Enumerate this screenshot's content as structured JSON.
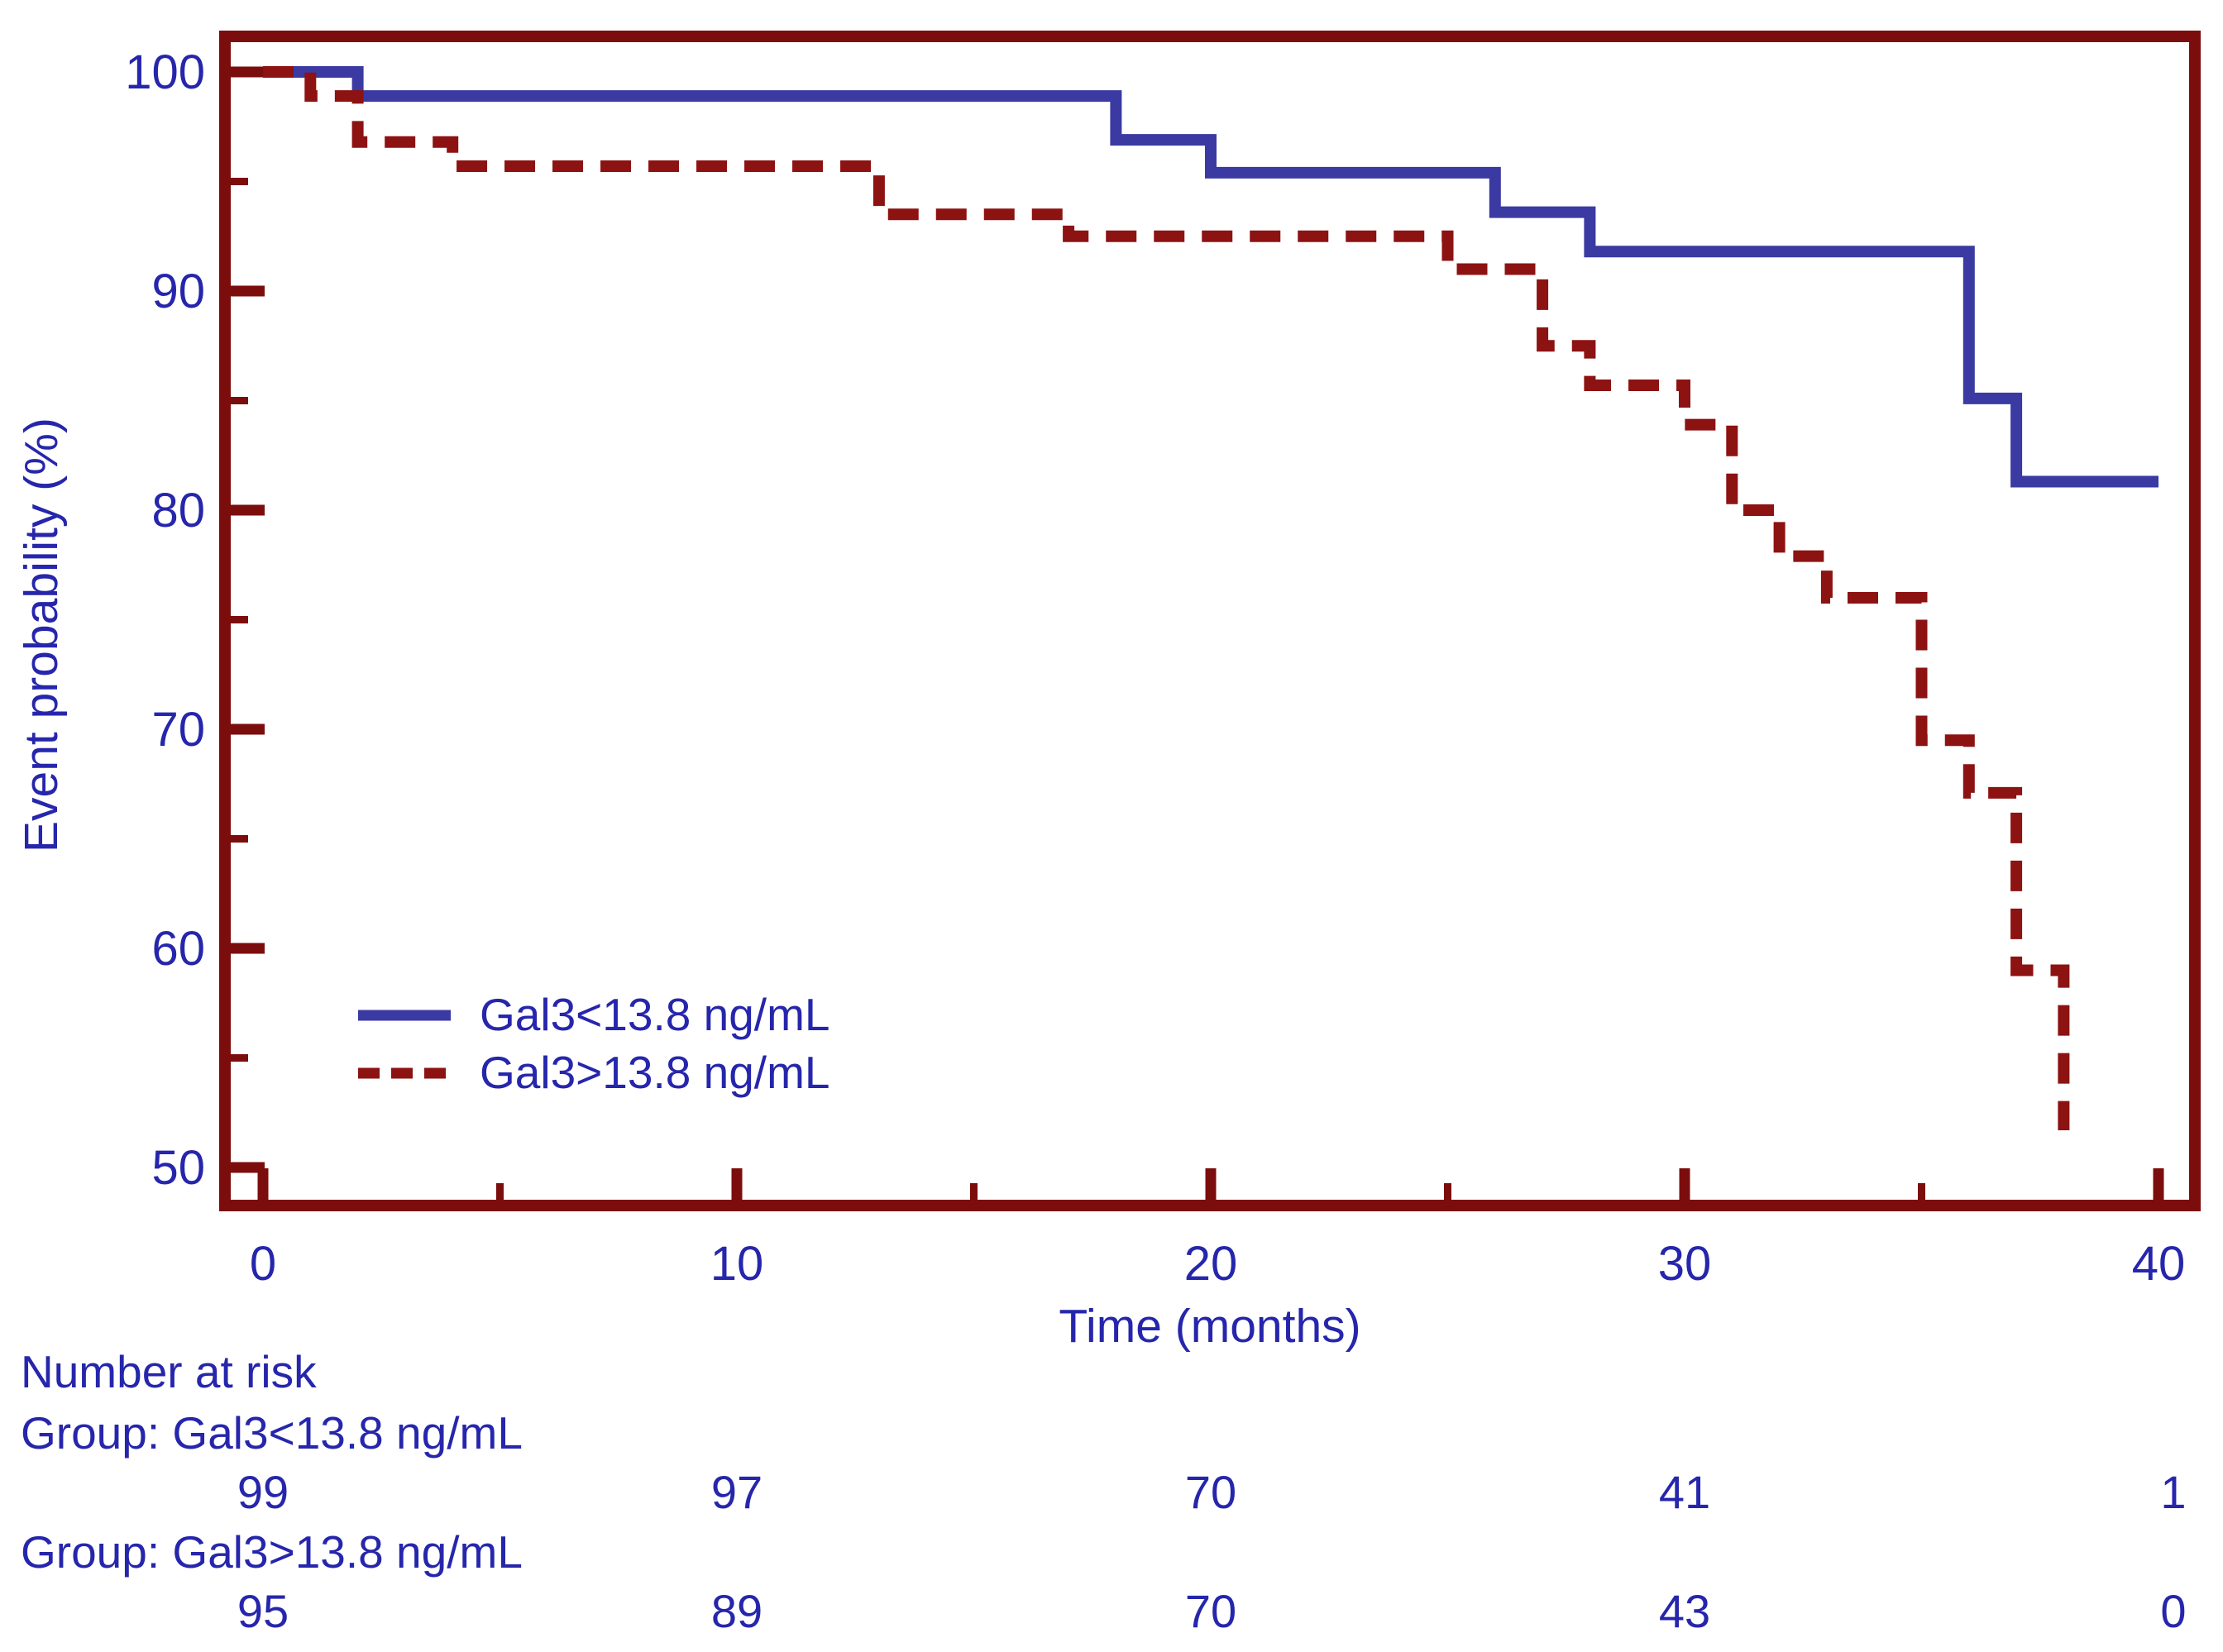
{
  "chart_data": {
    "type": "line",
    "subtype": "kaplan-meier-step",
    "title": "",
    "xlabel": "Time  (months)",
    "ylabel": "Event probability (%)",
    "xlim": [
      0,
      40
    ],
    "ylim": [
      48.3,
      101.6
    ],
    "xticks_major": [
      0,
      10,
      20,
      30,
      40
    ],
    "xticks_minor": [
      5,
      15,
      25,
      35
    ],
    "yticks_major": [
      100,
      90,
      80,
      70,
      60,
      50
    ],
    "yticks_minor": [
      95,
      85,
      75,
      65,
      55
    ],
    "grid": false,
    "legend_position": "inside-lower-left",
    "series": [
      {
        "name": "Gal3<13.8 ng/mL",
        "style": "solid",
        "color": "#3A3AA2",
        "step_times": [
          0,
          2,
          18,
          20,
          26,
          28,
          36,
          37
        ],
        "step_values": [
          100,
          98.9,
          96.9,
          95.4,
          93.6,
          91.8,
          85.1,
          81.3
        ],
        "end_time": 40
      },
      {
        "name": "Gal3>13.8 ng/mL",
        "style": "dashed",
        "color": "#8D1212",
        "step_times": [
          0,
          1,
          2,
          4,
          13,
          17,
          25,
          27,
          28,
          30,
          31,
          32,
          33,
          35,
          36,
          37,
          38
        ],
        "step_values": [
          100,
          98.9,
          96.8,
          95.7,
          93.5,
          92.5,
          91.0,
          87.5,
          85.7,
          83.9,
          80.0,
          77.9,
          76.0,
          69.5,
          67.1,
          59.0,
          51.7
        ],
        "end_time": 38
      }
    ]
  },
  "legend": {
    "items": [
      {
        "label": "Gal3<13.8 ng/mL",
        "style": "solid",
        "color": "#3A3AA2"
      },
      {
        "label": "Gal3>13.8 ng/mL",
        "style": "dashed",
        "color": "#8D1212"
      }
    ]
  },
  "number_at_risk": {
    "title": "Number at risk",
    "time_points": [
      0,
      10,
      20,
      30,
      40
    ],
    "groups": [
      {
        "label": "Group: Gal3<13.8 ng/mL",
        "counts": [
          "99",
          "97",
          "70",
          "41",
          "1"
        ]
      },
      {
        "label": "Group: Gal3>13.8 ng/mL",
        "counts": [
          "95",
          "89",
          "70",
          "43",
          "0"
        ]
      }
    ]
  },
  "colors": {
    "axis_frame": "#7C0D0D",
    "text": "#2626AC",
    "curve_low_group": "#3A3AA2",
    "curve_high_group": "#8D1212",
    "background": "#FFFFFF"
  }
}
